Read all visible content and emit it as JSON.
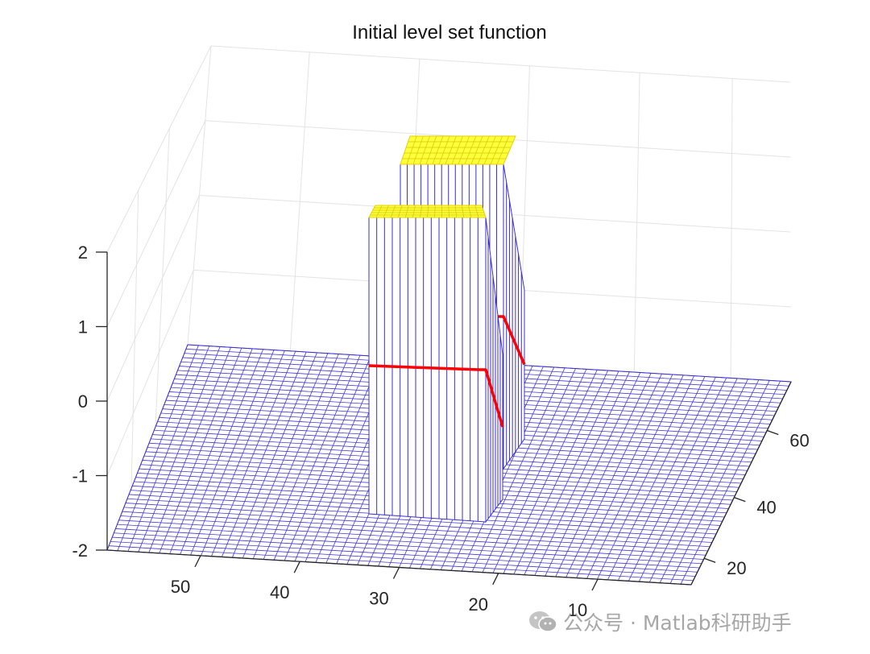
{
  "chart_data": {
    "type": "surface",
    "title": "Initial level set function",
    "xlabel": "",
    "ylabel": "",
    "zlabel": "",
    "x_ticks": [
      10,
      20,
      30,
      40,
      50
    ],
    "y_ticks": [
      20,
      40,
      60
    ],
    "z_ticks": [
      2,
      1,
      0,
      -1,
      -2
    ],
    "zlim": [
      -2,
      2
    ],
    "base_level": -2,
    "plateau_level": 2,
    "zero_contour_level": 0,
    "regions": [
      {
        "name": "",
        "value": 2
      },
      {
        "name": "",
        "value": 2
      }
    ],
    "grid": true,
    "colors": {
      "mesh": "#3a2fd0",
      "plateau_top": "#ffff3c",
      "contour": "#ff0000",
      "axis": "#262626",
      "grid": "#e3e3e3"
    }
  },
  "watermark": {
    "text": "公众号 · Matlab科研助手"
  }
}
